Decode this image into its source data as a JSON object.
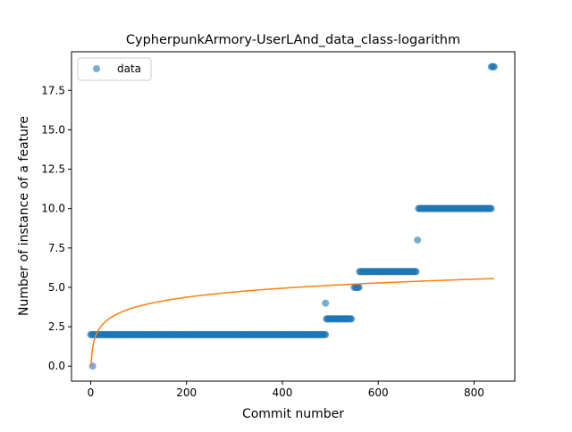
{
  "chart_data": {
    "type": "scatter",
    "title": "CypherpunkArmory-UserLAnd_data_class-logarithm",
    "xlabel": "Commit number",
    "ylabel": "Number of instance of a feature",
    "xlim": [
      -40,
      885
    ],
    "ylim": [
      -0.95,
      19.95
    ],
    "xticks": [
      0,
      200,
      400,
      600,
      800
    ],
    "xtick_labels": [
      "0",
      "200",
      "400",
      "600",
      "800"
    ],
    "yticks": [
      0,
      2.5,
      5,
      7.5,
      10,
      12.5,
      15,
      17.5
    ],
    "ytick_labels": [
      "0.0",
      "2.5",
      "5.0",
      "7.5",
      "10.0",
      "12.5",
      "15.0",
      "17.5"
    ],
    "grid": false,
    "legend": {
      "placement": "upper-left",
      "entries": [
        "data"
      ]
    },
    "series": [
      {
        "name": "data",
        "kind": "scatter",
        "color": "#1f77b4",
        "alpha": 0.6,
        "segments": [
          {
            "x_start": 4,
            "x_end": 4,
            "y": 0
          },
          {
            "x_start": 0,
            "x_end": 490,
            "y": 2
          },
          {
            "x_start": 490,
            "x_end": 490,
            "y": 4
          },
          {
            "x_start": 492,
            "x_end": 545,
            "y": 3
          },
          {
            "x_start": 550,
            "x_end": 560,
            "y": 5
          },
          {
            "x_start": 561,
            "x_end": 680,
            "y": 6
          },
          {
            "x_start": 682,
            "x_end": 682,
            "y": 8
          },
          {
            "x_start": 684,
            "x_end": 836,
            "y": 10
          },
          {
            "x_start": 836,
            "x_end": 842,
            "y": 19
          }
        ]
      },
      {
        "name": "",
        "kind": "line",
        "color": "#ff7f0e",
        "model": "logarithmic",
        "a": 0.8253,
        "b": 0,
        "x_range": [
          1,
          842
        ]
      }
    ]
  }
}
